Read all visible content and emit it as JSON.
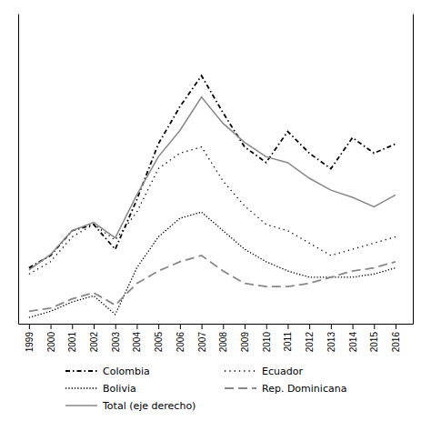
{
  "chart_data": {
    "type": "line",
    "x": [
      1999,
      2000,
      2001,
      2002,
      2003,
      2004,
      2005,
      2006,
      2007,
      2008,
      2009,
      2010,
      2011,
      2012,
      2013,
      2014,
      2015,
      2016
    ],
    "xlim": [
      1998.5,
      2016.8
    ],
    "xticks": [
      1999,
      2000,
      2001,
      2002,
      2003,
      2004,
      2005,
      2006,
      2007,
      2008,
      2009,
      2010,
      2011,
      2012,
      2013,
      2014,
      2015,
      2016
    ],
    "ylim": [
      0,
      100
    ],
    "y2lim": [
      0,
      260
    ],
    "tick_labels": "x",
    "grid": false,
    "legend": "bottom",
    "series": [
      {
        "name": "Colombia",
        "color": "#000000",
        "line_style": "dashdot",
        "values": [
          18,
          22,
          30,
          32,
          24,
          40,
          58,
          70,
          80,
          68,
          57,
          52,
          62,
          55,
          50,
          60,
          55,
          58
        ]
      },
      {
        "name": "Ecuador",
        "color": "#000000",
        "line_style": "loosely-dotted",
        "values": [
          16,
          20,
          28,
          32,
          27,
          36,
          50,
          55,
          57,
          46,
          38,
          32,
          30,
          26,
          22,
          24,
          26,
          28
        ]
      },
      {
        "name": "Bolivia",
        "color": "#000000",
        "line_style": "dotted",
        "values": [
          2,
          4,
          7,
          9,
          3,
          18,
          28,
          34,
          36,
          30,
          24,
          20,
          17,
          15,
          15,
          15,
          16,
          18
        ]
      },
      {
        "name": "Rep. Dominicana",
        "color": "#888888",
        "line_style": "dashed",
        "values": [
          4,
          5,
          8,
          10,
          6,
          13,
          17,
          20,
          22,
          17,
          13,
          12,
          12,
          13,
          15,
          17,
          18,
          20
        ]
      },
      {
        "name": "Total (eje derecho)",
        "color": "#888888",
        "line_style": "solid",
        "axis": "y2",
        "values": [
          45,
          58,
          78,
          85,
          72,
          108,
          140,
          162,
          190,
          168,
          152,
          140,
          135,
          122,
          112,
          106,
          98,
          108
        ]
      }
    ]
  }
}
